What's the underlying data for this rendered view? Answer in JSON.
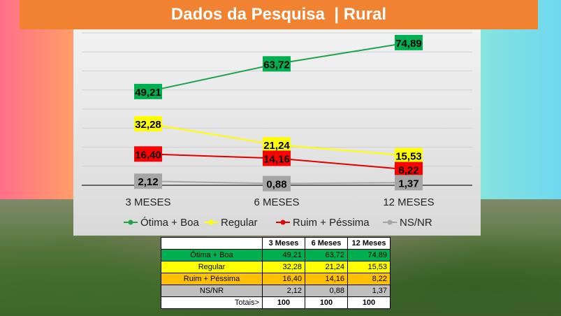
{
  "title": "Dados da Pesquisa  | Rural",
  "colors": {
    "otima": "#1fa34a",
    "regular": "#ffff00",
    "ruim": "#e00000",
    "ns": "#a6a6a6"
  },
  "chart_data": {
    "type": "line",
    "title": "",
    "xlabel": "",
    "ylabel": "",
    "categories": [
      "3 MESES",
      "6 MESES",
      "12 MESES"
    ],
    "ylim": [
      0,
      80
    ],
    "grid": true,
    "legend_position": "bottom",
    "series": [
      {
        "name": "Ótima + Boa",
        "values": [
          49.21,
          63.72,
          74.89
        ],
        "labels": [
          "49,21",
          "63,72",
          "74,89"
        ]
      },
      {
        "name": "Regular",
        "values": [
          32.28,
          21.24,
          15.53
        ],
        "labels": [
          "32,28",
          "21,24",
          "15,53"
        ]
      },
      {
        "name": "Ruim + Péssima",
        "values": [
          16.4,
          14.16,
          8.22
        ],
        "labels": [
          "16,40",
          "14,16",
          "8,22"
        ]
      },
      {
        "name": "NS/NR",
        "values": [
          2.12,
          0.88,
          1.37
        ],
        "labels": [
          "2,12",
          "0,88",
          "1,37"
        ]
      }
    ]
  },
  "table": {
    "headers": [
      "",
      "3 Meses",
      "6 Meses",
      "12 Meses"
    ],
    "rows": [
      {
        "label": "Ótima + Boa",
        "values": [
          "49,21",
          "63,72",
          "74,89"
        ]
      },
      {
        "label": "Regular",
        "values": [
          "32,28",
          "21,24",
          "15,53"
        ]
      },
      {
        "label": "Ruim + Péssima",
        "values": [
          "16,40",
          "14,16",
          "8,22"
        ]
      },
      {
        "label": "NS/NR",
        "values": [
          "2,12",
          "0,88",
          "1,37"
        ]
      }
    ],
    "totals_label": "Totais>",
    "totals": [
      "100",
      "100",
      "100"
    ]
  }
}
